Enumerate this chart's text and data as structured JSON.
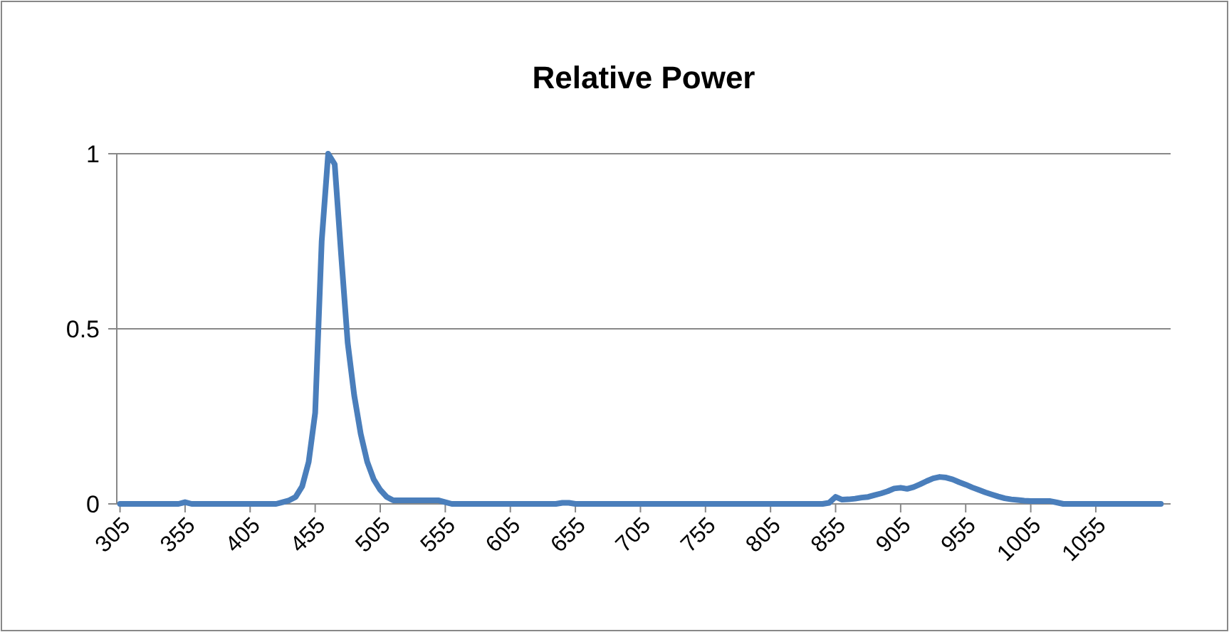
{
  "chart_data": {
    "type": "line",
    "title": "Relative Power",
    "x": [
      305,
      350,
      355,
      360,
      425,
      430,
      435,
      440,
      445,
      450,
      455,
      460,
      465,
      470,
      475,
      480,
      485,
      490,
      495,
      500,
      505,
      510,
      515,
      520,
      550,
      555,
      560,
      640,
      645,
      650,
      655,
      845,
      850,
      855,
      860,
      865,
      870,
      875,
      880,
      885,
      890,
      895,
      900,
      905,
      910,
      915,
      920,
      925,
      930,
      935,
      940,
      945,
      950,
      955,
      960,
      965,
      970,
      975,
      980,
      985,
      990,
      995,
      1000,
      1005,
      1010,
      1015,
      1020,
      1025,
      1030,
      1105
    ],
    "series": [
      {
        "color": "#4a7ebb",
        "values": [
          0,
          0,
          0.005,
          0,
          0,
          0.005,
          0.01,
          0.02,
          0.05,
          0.12,
          0.26,
          0.75,
          1,
          0.97,
          0.71,
          0.46,
          0.31,
          0.2,
          0.12,
          0.07,
          0.04,
          0.02,
          0.01,
          0.01,
          0.01,
          0.005,
          0,
          0,
          0.003,
          0.003,
          0,
          0,
          0.003,
          0.02,
          0.012,
          0.013,
          0.015,
          0.018,
          0.02,
          0.025,
          0.03,
          0.036,
          0.044,
          0.046,
          0.043,
          0.048,
          0.056,
          0.065,
          0.073,
          0.077,
          0.075,
          0.07,
          0.062,
          0.055,
          0.047,
          0.04,
          0.033,
          0.027,
          0.021,
          0.016,
          0.013,
          0.011,
          0.009,
          0.008,
          0.008,
          0.008,
          0.008,
          0.004,
          0,
          0
        ]
      }
    ],
    "xlim": [
      302.5,
      1112.5
    ],
    "xticks": [
      305,
      355,
      405,
      455,
      505,
      555,
      605,
      655,
      705,
      755,
      805,
      855,
      905,
      955,
      1005,
      1055
    ],
    "ylim": [
      0,
      1
    ],
    "yticks": [
      0,
      0.5,
      1
    ],
    "grid": "y"
  }
}
